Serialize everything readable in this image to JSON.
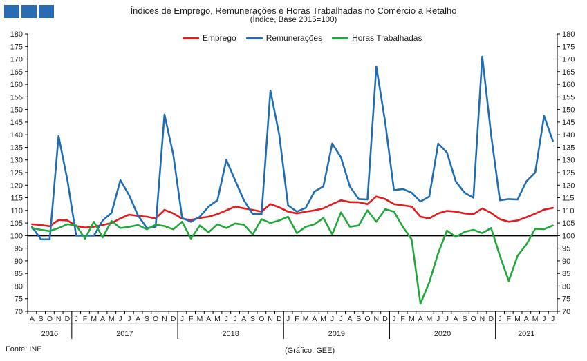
{
  "header": {
    "title": "Índices de Emprego, Remunerações e Horas Trabalhadas no Comércio a Retalho",
    "subtitle": "(Índice, Base 2015=100)"
  },
  "footer": {
    "source": "Fonte: INE",
    "credit": "(Gráfico: GEE)"
  },
  "colors": {
    "emprego": "#e41a1c",
    "remuneracoes": "#1f6db5",
    "horas": "#20a83c",
    "logo": "#2a6cb3"
  },
  "chart_data": {
    "type": "line",
    "title": "Índices de Emprego, Remunerações e Horas Trabalhadas no Comércio a Retalho",
    "subtitle": "(Índice, Base 2015=100)",
    "ylim": [
      70,
      180
    ],
    "yticks": [
      70,
      75,
      80,
      85,
      90,
      95,
      100,
      105,
      110,
      115,
      120,
      125,
      130,
      135,
      140,
      145,
      150,
      155,
      160,
      165,
      170,
      175,
      180
    ],
    "reference_line": 100,
    "grid": false,
    "legend_position": "top-center",
    "month_labels": [
      "A",
      "S",
      "O",
      "N",
      "D",
      "J",
      "F",
      "M",
      "A",
      "M",
      "J",
      "J",
      "A",
      "S",
      "O",
      "N",
      "D",
      "J",
      "F",
      "M",
      "A",
      "M",
      "J",
      "J",
      "A",
      "S",
      "O",
      "N",
      "D",
      "J",
      "F",
      "M",
      "A",
      "M",
      "J",
      "J",
      "A",
      "S",
      "O",
      "N",
      "D",
      "J",
      "F",
      "M",
      "A",
      "M",
      "J",
      "J",
      "A",
      "S",
      "O",
      "N",
      "D",
      "J",
      "F",
      "M",
      "A",
      "M",
      "J",
      "J"
    ],
    "year_groups": [
      {
        "label": "2016",
        "start": 0,
        "count": 5
      },
      {
        "label": "2017",
        "start": 5,
        "count": 12
      },
      {
        "label": "2018",
        "start": 17,
        "count": 12
      },
      {
        "label": "2019",
        "start": 29,
        "count": 12
      },
      {
        "label": "2020",
        "start": 41,
        "count": 12
      },
      {
        "label": "2021",
        "start": 53,
        "count": 7
      }
    ],
    "series": [
      {
        "name": "Emprego",
        "color": "#e41a1c",
        "values": [
          104.5,
          104.2,
          103.7,
          106.2,
          106.0,
          103.8,
          103.2,
          103.5,
          104.2,
          105.0,
          106.8,
          108.3,
          107.8,
          107.5,
          106.8,
          110.2,
          108.8,
          106.7,
          106.2,
          107.0,
          107.5,
          108.5,
          110.0,
          111.5,
          110.8,
          110.2,
          109.5,
          112.5,
          111.2,
          109.5,
          108.8,
          109.5,
          110.0,
          110.8,
          112.5,
          114.0,
          113.3,
          113.2,
          112.5,
          115.5,
          114.5,
          112.5,
          112.0,
          111.5,
          107.5,
          106.8,
          108.8,
          109.8,
          109.5,
          108.8,
          108.5,
          110.8,
          109.0,
          106.5,
          105.5,
          106.0,
          107.3,
          108.7,
          110.3,
          111.0
        ]
      },
      {
        "name": "Remunerações",
        "color": "#1f6db5",
        "values": [
          103.5,
          98.5,
          98.5,
          139.5,
          122.0,
          100.0,
          100.0,
          100.0,
          106.0,
          109.0,
          122.0,
          116.0,
          108.0,
          103.0,
          103.5,
          148.0,
          132.0,
          107.0,
          105.5,
          107.5,
          111.5,
          114.0,
          130.0,
          122.0,
          114.0,
          108.5,
          108.5,
          157.5,
          140.0,
          112.0,
          109.5,
          111.0,
          117.5,
          119.5,
          136.5,
          131.0,
          119.5,
          114.5,
          114.3,
          167.0,
          145.0,
          118.0,
          118.5,
          117.0,
          113.5,
          115.5,
          136.5,
          133.0,
          121.5,
          117.0,
          115.0,
          171.0,
          140.0,
          114.0,
          114.5,
          114.3,
          121.5,
          125.0,
          147.5,
          137.5
        ]
      },
      {
        "name": "Horas Trabalhadas",
        "color": "#20a83c",
        "values": [
          103.0,
          102.3,
          101.8,
          103.0,
          104.5,
          104.0,
          98.8,
          105.5,
          99.3,
          105.8,
          103.0,
          103.5,
          104.2,
          102.5,
          104.3,
          103.8,
          102.5,
          105.5,
          98.8,
          104.0,
          101.3,
          104.5,
          103.0,
          104.8,
          104.3,
          100.5,
          106.5,
          105.0,
          106.0,
          107.5,
          101.0,
          103.5,
          104.5,
          107.0,
          100.5,
          109.2,
          103.5,
          104.0,
          110.0,
          105.5,
          110.5,
          109.5,
          103.5,
          98.5,
          73.0,
          81.5,
          93.0,
          102.0,
          99.5,
          101.5,
          102.3,
          101.0,
          103.0,
          92.0,
          82.0,
          92.0,
          96.5,
          102.7,
          102.6,
          104.0
        ]
      }
    ]
  }
}
